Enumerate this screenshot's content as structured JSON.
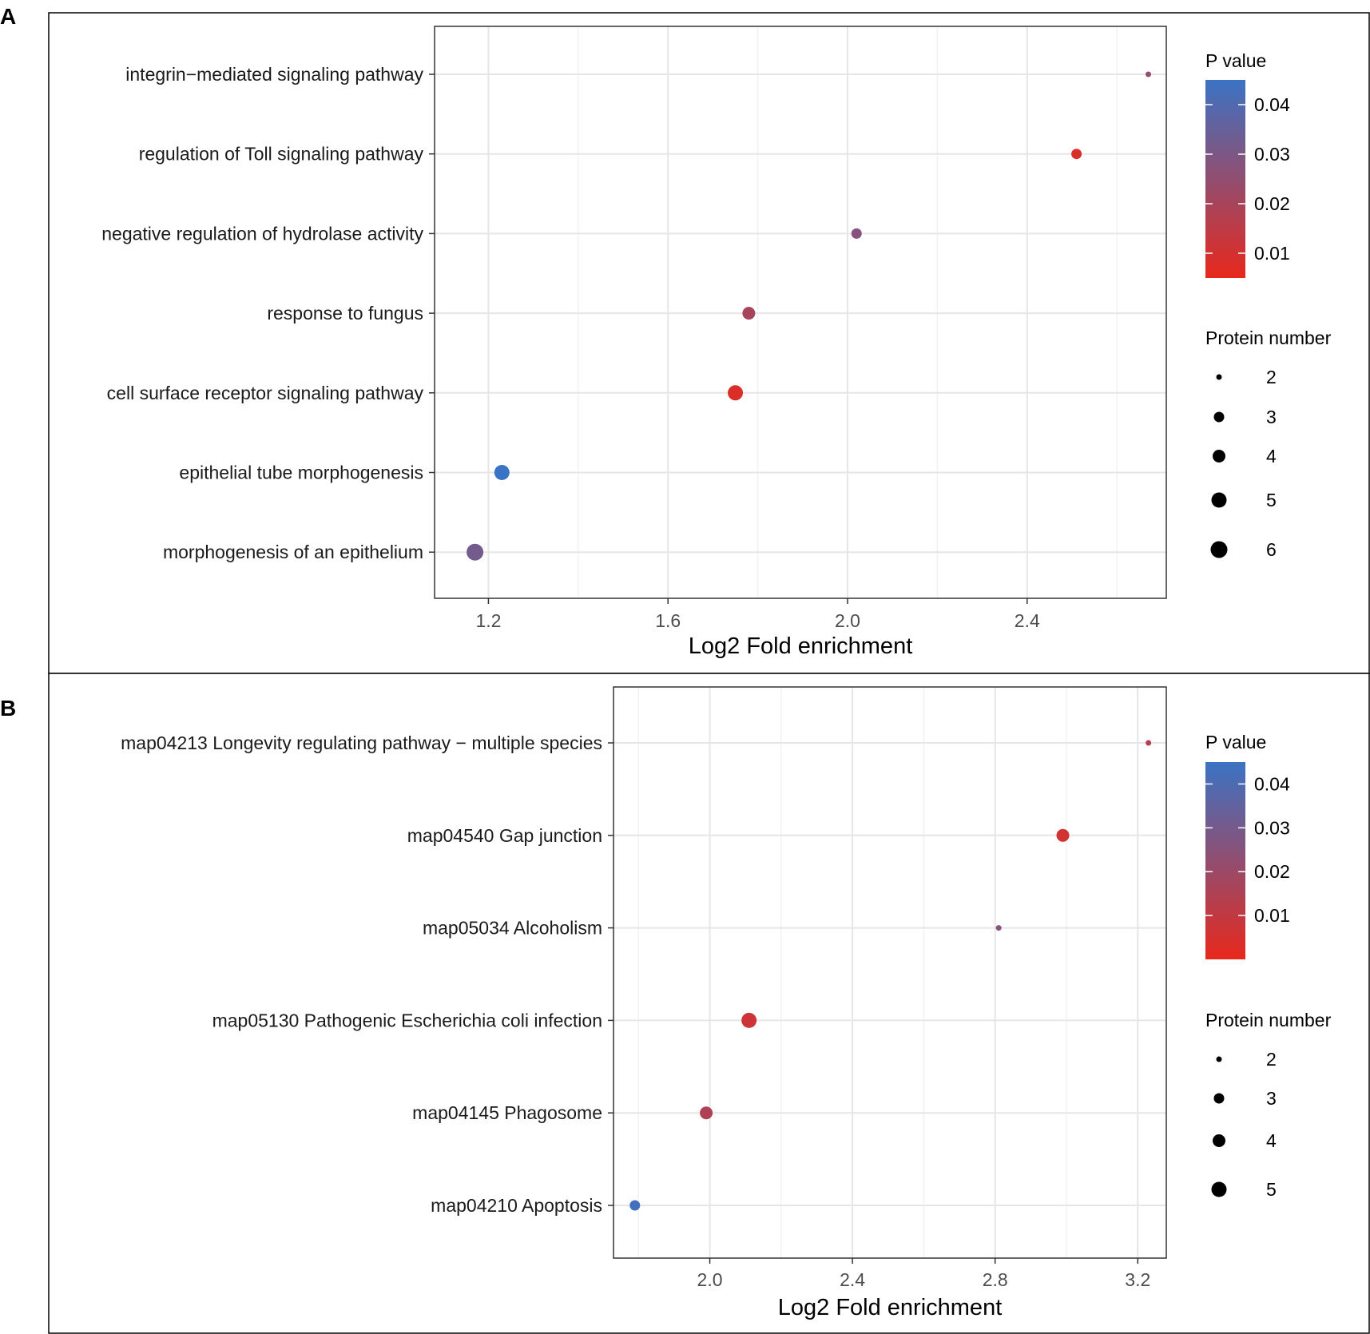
{
  "panel_labels": [
    "A",
    "B"
  ],
  "chart_data": [
    {
      "type": "scatter",
      "panel": "A",
      "xlabel": "Log2 Fold enrichment",
      "xlim": [
        1.08,
        2.71
      ],
      "xticks": [
        1.2,
        1.6,
        2.0,
        2.4
      ],
      "tick_labels": [
        "1.2",
        "1.6",
        "2.0",
        "2.4"
      ],
      "categories": [
        "integrin−mediated signaling pathway",
        "regulation of Toll signaling pathway",
        "negative regulation of hydrolase activity",
        "response to fungus",
        "cell surface receptor signaling pathway",
        "epithelial tube morphogenesis",
        "morphogenesis of an epithelium"
      ],
      "points": [
        {
          "term": "integrin−mediated signaling pathway",
          "x": 2.67,
          "p": 0.025,
          "n": 2
        },
        {
          "term": "regulation of Toll signaling pathway",
          "x": 2.51,
          "p": 0.008,
          "n": 3
        },
        {
          "term": "negative regulation of hydrolase activity",
          "x": 2.02,
          "p": 0.028,
          "n": 3
        },
        {
          "term": "response to fungus",
          "x": 1.78,
          "p": 0.02,
          "n": 4
        },
        {
          "term": "cell surface receptor signaling pathway",
          "x": 1.75,
          "p": 0.008,
          "n": 5
        },
        {
          "term": "epithelial tube morphogenesis",
          "x": 1.23,
          "p": 0.046,
          "n": 5
        },
        {
          "term": "morphogenesis of an epithelium",
          "x": 1.17,
          "p": 0.032,
          "n": 6
        }
      ],
      "color_legend": {
        "title": "P value",
        "ticks": [
          "0.04",
          "0.03",
          "0.02",
          "0.01"
        ],
        "tick_values": [
          0.04,
          0.03,
          0.02,
          0.01
        ],
        "range": [
          0.005,
          0.045
        ],
        "low_color": "#E8281C",
        "high_color": "#3B73C4"
      },
      "size_legend": {
        "title": "Protein number",
        "values": [
          2,
          3,
          4,
          5,
          6
        ],
        "labels": [
          "2",
          "3",
          "4",
          "5",
          "6"
        ]
      }
    },
    {
      "type": "scatter",
      "panel": "B",
      "xlabel": "Log2 Fold enrichment",
      "xlim": [
        1.73,
        3.28
      ],
      "xticks": [
        2.0,
        2.4,
        2.8,
        3.2
      ],
      "tick_labels": [
        "2.0",
        "2.4",
        "2.8",
        "3.2"
      ],
      "categories": [
        "map04213 Longevity regulating pathway − multiple species",
        "map04540 Gap junction",
        "map05034 Alcoholism",
        "map05130 Pathogenic Escherichia coli infection",
        "map04145 Phagosome",
        "map04210 Apoptosis"
      ],
      "points": [
        {
          "term": "map04213 Longevity regulating pathway − multiple species",
          "x": 3.23,
          "p": 0.013,
          "n": 2
        },
        {
          "term": "map04540 Gap junction",
          "x": 2.99,
          "p": 0.006,
          "n": 4
        },
        {
          "term": "map05034 Alcoholism",
          "x": 2.81,
          "p": 0.025,
          "n": 2
        },
        {
          "term": "map05130 Pathogenic Escherichia coli infection",
          "x": 2.11,
          "p": 0.007,
          "n": 5
        },
        {
          "term": "map04145 Phagosome",
          "x": 1.99,
          "p": 0.015,
          "n": 4
        },
        {
          "term": "map04210 Apoptosis",
          "x": 1.79,
          "p": 0.043,
          "n": 3
        }
      ],
      "color_legend": {
        "title": "P value",
        "ticks": [
          "0.04",
          "0.03",
          "0.02",
          "0.01"
        ],
        "tick_values": [
          0.04,
          0.03,
          0.02,
          0.01
        ],
        "range": [
          0.0,
          0.045
        ],
        "low_color": "#E8281C",
        "high_color": "#3B73C4"
      },
      "size_legend": {
        "title": "Protein number",
        "values": [
          2,
          3,
          4,
          5
        ],
        "labels": [
          "2",
          "3",
          "4",
          "5"
        ]
      }
    }
  ]
}
